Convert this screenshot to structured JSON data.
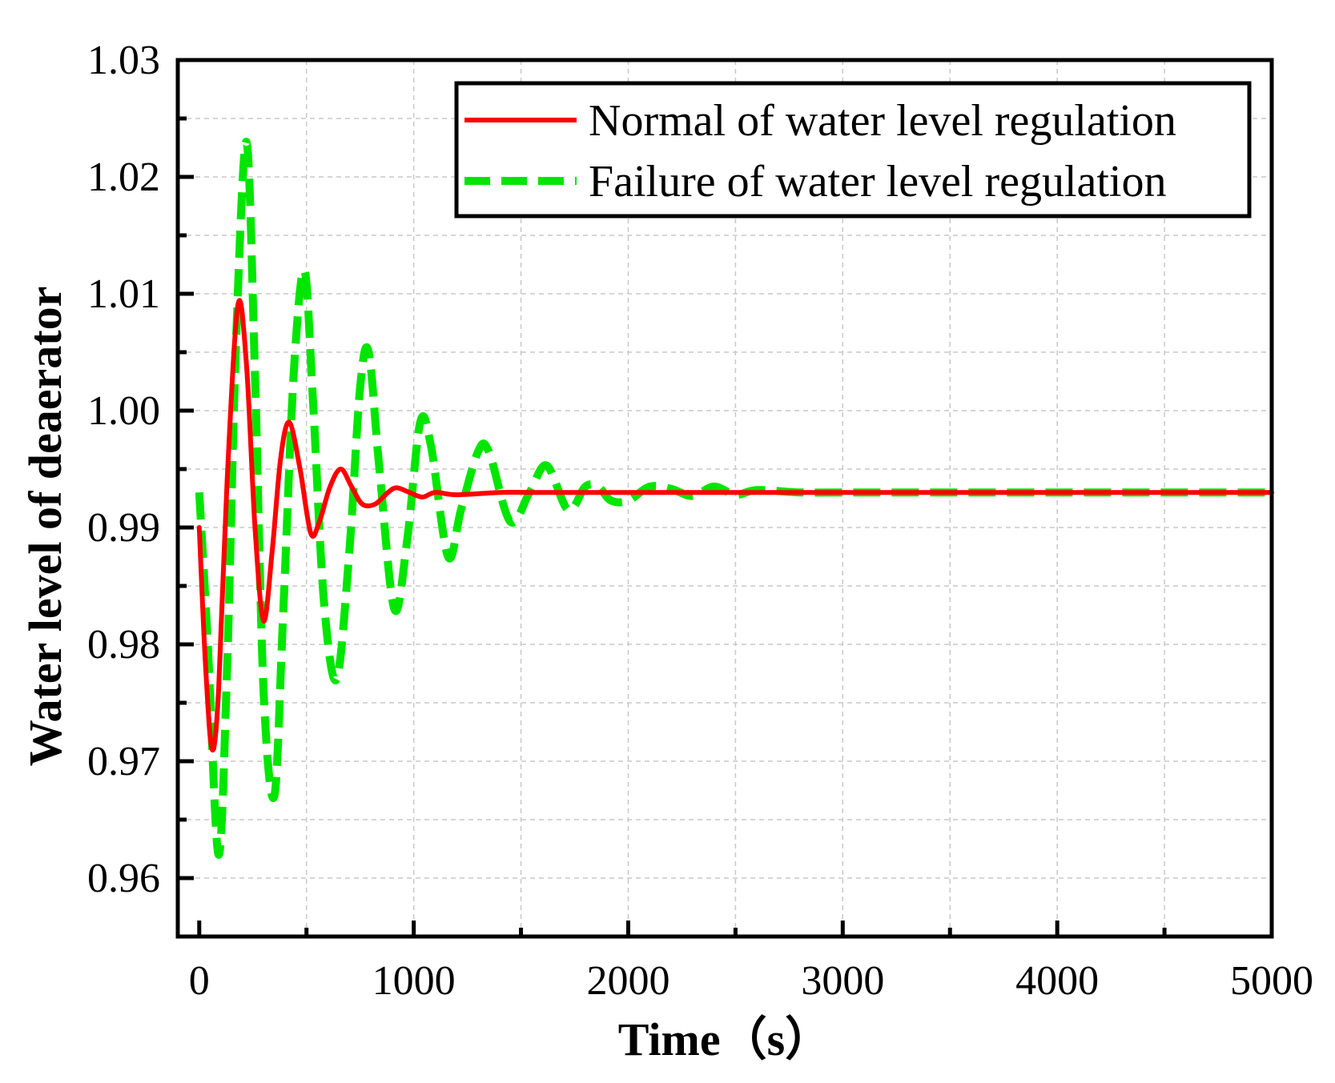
{
  "chart_data": {
    "type": "line",
    "title": "",
    "xlabel": "Time（s）",
    "ylabel": "Water level of deaerator",
    "xlim": [
      -100,
      5000
    ],
    "ylim": [
      0.955,
      1.03
    ],
    "xticks": [
      0,
      1000,
      2000,
      3000,
      4000,
      5000
    ],
    "xtick_labels": [
      "0",
      "1000",
      "2000",
      "3000",
      "4000",
      "5000"
    ],
    "yticks": [
      0.96,
      0.97,
      0.98,
      0.99,
      1.0,
      1.01,
      1.02,
      1.03
    ],
    "ytick_labels": [
      "0.96",
      "0.97",
      "0.98",
      "0.99",
      "1.00",
      "1.01",
      "1.02",
      "1.03"
    ],
    "grid": true,
    "legend_position": "top-right",
    "series": [
      {
        "name": "Normal of water level regulation",
        "color": "#ff0000",
        "style": "solid",
        "x": [
          0,
          30,
          60,
          90,
          130,
          180,
          220,
          260,
          300,
          340,
          380,
          420,
          470,
          520,
          560,
          610,
          660,
          710,
          760,
          820,
          880,
          920,
          980,
          1040,
          1100,
          1200,
          1400,
          1600,
          2000,
          3000,
          4000,
          5000
        ],
        "y": [
          0.99,
          0.978,
          0.971,
          0.976,
          0.994,
          1.009,
          1.004,
          0.99,
          0.982,
          0.988,
          0.996,
          0.999,
          0.995,
          0.9895,
          0.9905,
          0.9935,
          0.995,
          0.9935,
          0.992,
          0.992,
          0.993,
          0.9934,
          0.993,
          0.9926,
          0.993,
          0.9928,
          0.993,
          0.993,
          0.993,
          0.993,
          0.993,
          0.993
        ]
      },
      {
        "name": "Failure of water level regulation",
        "color": "#00e600",
        "style": "dashed",
        "x": [
          0,
          40,
          90,
          130,
          170,
          220,
          260,
          300,
          350,
          390,
          440,
          490,
          530,
          580,
          640,
          700,
          750,
          790,
          840,
          910,
          970,
          1030,
          1080,
          1160,
          1220,
          1300,
          1350,
          1450,
          1540,
          1620,
          1720,
          1800,
          1860,
          1920,
          2000,
          2100,
          2200,
          2300,
          2400,
          2500,
          2600,
          2800,
          3000,
          3200,
          3500,
          4000,
          4500,
          5000
        ],
        "y": [
          0.993,
          0.98,
          0.962,
          0.978,
          1.005,
          1.023,
          1.003,
          0.976,
          0.967,
          0.982,
          1.003,
          1.012,
          1.001,
          0.984,
          0.977,
          0.988,
          1.002,
          1.005,
          0.995,
          0.983,
          0.989,
          0.999,
          0.997,
          0.9875,
          0.9915,
          0.9965,
          0.9965,
          0.9905,
          0.993,
          0.9953,
          0.9915,
          0.9935,
          0.9935,
          0.9923,
          0.9923,
          0.9935,
          0.9933,
          0.9927,
          0.9935,
          0.9928,
          0.9932,
          0.993,
          0.993,
          0.993,
          0.993,
          0.993,
          0.993,
          0.993
        ]
      }
    ]
  }
}
